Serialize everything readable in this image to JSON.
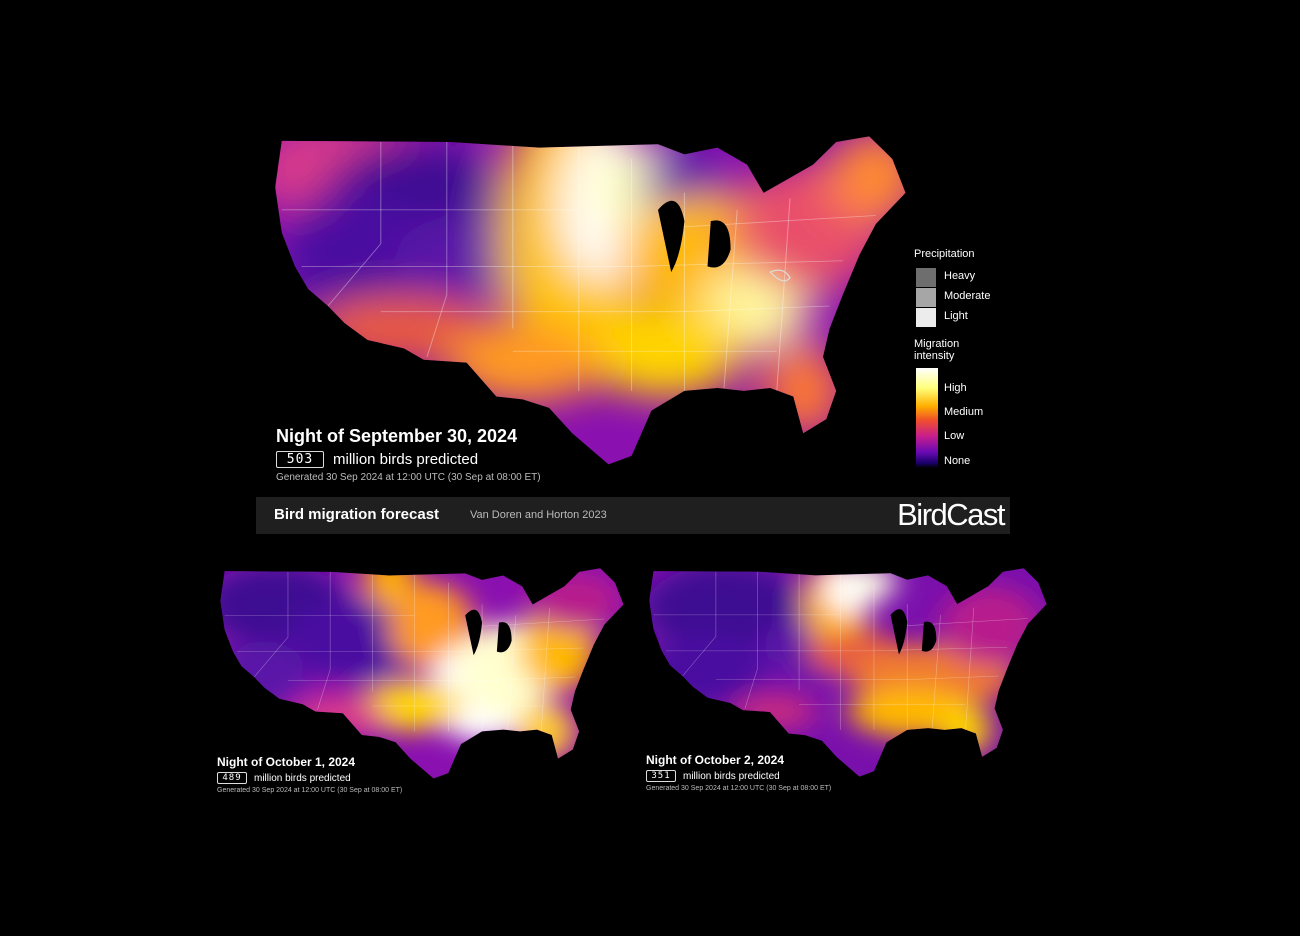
{
  "maps": [
    {
      "night": "Night of September 30, 2024",
      "count": "503",
      "unit": "million birds predicted",
      "generated": "Generated 30 Sep 2024 at 12:00 UTC (30 Sep at 08:00 ET)"
    },
    {
      "night": "Night of October 1, 2024",
      "count": "489",
      "unit": "million birds predicted",
      "generated": "Generated 30 Sep 2024 at 12:00 UTC (30 Sep at 08:00 ET)"
    },
    {
      "night": "Night of October 2, 2024",
      "count": "351",
      "unit": "million birds predicted",
      "generated": "Generated 30 Sep 2024 at 12:00 UTC (30 Sep at 08:00 ET)"
    }
  ],
  "footer": {
    "title": "Bird migration forecast",
    "citation": "Van Doren and Horton 2023",
    "logo": "BirdCast"
  },
  "legend": {
    "precipitation": {
      "title": "Precipitation",
      "items": [
        {
          "label": "Heavy",
          "color": "#6e6e6e"
        },
        {
          "label": "Moderate",
          "color": "#a6a6a6"
        },
        {
          "label": "Light",
          "color": "#ececec"
        }
      ]
    },
    "migration": {
      "title_line1": "Migration",
      "title_line2": "intensity",
      "levels": [
        "High",
        "Medium",
        "Low",
        "None"
      ]
    }
  },
  "colors": {
    "none": "#000000",
    "low": "#4a0aa0",
    "medium": "#ffb000",
    "high": "#ffffff"
  }
}
